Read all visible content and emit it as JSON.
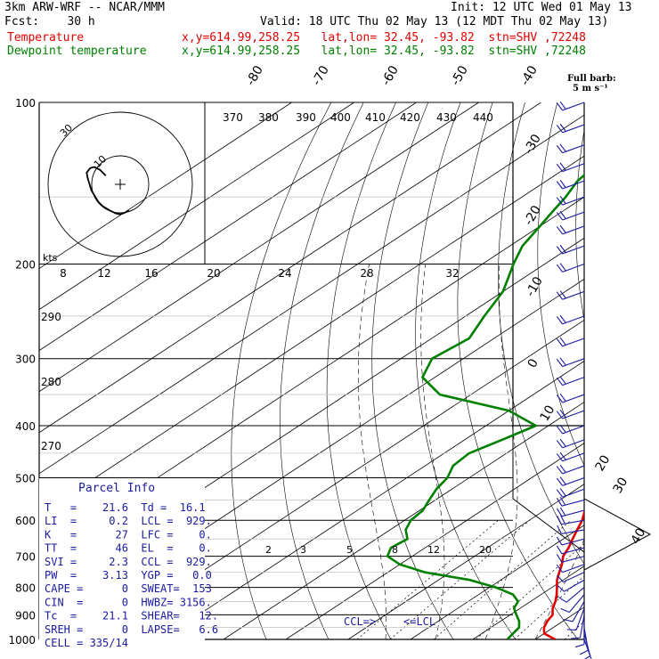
{
  "header": {
    "model": "3km ARW-WRF -- NCAR/MMM",
    "init": "Init: 12 UTC Wed 01 May 13",
    "fcst": "Fcst:    30 h",
    "valid": "Valid: 18 UTC Thu 02 May 13 (12 MDT Thu 02 May 13)",
    "temp_label": "Temperature",
    "temp_info": "x,y=614.99,258.25   lat,lon= 32.45, -93.82  stn=SHV ,72248",
    "dew_label": "Dewpoint temperature",
    "dew_info": "x,y=614.99,258.25   lat,lon= 32.45, -93.82  stn=SHV ,72248"
  },
  "barb_legend": {
    "title": "Full barb:",
    "unit": "5 m s⁻¹"
  },
  "parcel_info": {
    "title": "Parcel Info",
    "rows": [
      "T   =    21.6  Td =  16.1",
      "LI  =     0.2  LCL =  929.",
      "K   =      27  LFC =    0.",
      "TT  =      46  EL  =    0.",
      "SVI =     2.3  CCL =  929.",
      "PW  =    3.13  YGP =   0.0",
      "CAPE =      0  SWEAT=  153",
      "CIN  =      0  HWBZ= 3156.",
      "Tc  =    21.1  SHEAR=   12.",
      "SREH =      0  LAPSE=   6.6",
      "CELL = 335/14"
    ]
  },
  "hodograph": {
    "unit_label": "kts",
    "ring_labels": [
      "30",
      "10"
    ],
    "speed_ticks": [
      "8",
      "12",
      "16",
      "20",
      "24",
      "28",
      "32"
    ]
  },
  "theta_labels": [
    "370",
    "380",
    "390",
    "400",
    "410",
    "420",
    "430",
    "440"
  ],
  "theta_left_labels": [
    "290",
    "280",
    "270"
  ],
  "mixing_ratio_labels": [
    "2",
    "3",
    "5",
    "8",
    "12",
    "20"
  ],
  "level_labels": {
    "ccl": "CCL=>",
    "lcl": "<=LCL"
  },
  "colors": {
    "temperature": "#e00000",
    "dewpoint": "#008000",
    "parcel_text": "#1a1aa0",
    "barbs": "#1a1aa0"
  },
  "chart_data": {
    "type": "line",
    "subtype": "skew-T log-P sounding",
    "y_axis": {
      "label": "Pressure (hPa)",
      "scale": "log",
      "ticks": [
        100,
        200,
        300,
        400,
        500,
        600,
        700,
        800,
        900,
        1000
      ],
      "range": [
        1000,
        100
      ]
    },
    "isotherm_labels": [
      "-80",
      "-70",
      "-60",
      "-50",
      "-40",
      "-30",
      "-20",
      "-10",
      "0",
      "10",
      "20",
      "30",
      "40"
    ],
    "series": [
      {
        "name": "Temperature",
        "pressure": [
          1000,
          975,
          950,
          925,
          900,
          875,
          850,
          825,
          800,
          775,
          750,
          725,
          700,
          675,
          650,
          625,
          600,
          575,
          550,
          525,
          500,
          475,
          450,
          425,
          400,
          375,
          350,
          325,
          300,
          275,
          250,
          225,
          200,
          185,
          170,
          160,
          150,
          140,
          130,
          120,
          110,
          100
        ],
        "temperature_c": [
          23.2,
          20.0,
          18.5,
          17.5,
          16.8,
          15.2,
          14.0,
          12.5,
          10.8,
          9.0,
          7.5,
          6.0,
          4.2,
          3.0,
          1.5,
          0.0,
          -1.5,
          -3.5,
          -5.5,
          -8.0,
          -10.5,
          -13.0,
          -16.0,
          -19.0,
          -22.5,
          -26.0,
          -30.0,
          -34.0,
          -38.5,
          -43.5,
          -48.5,
          -54.0,
          -60.0,
          -63.5,
          -66.0,
          -66.8,
          -66.0,
          -65.0,
          -64.0,
          -63.0,
          -62.0,
          -61.5
        ]
      },
      {
        "name": "Dewpoint temperature",
        "pressure": [
          1000,
          975,
          950,
          925,
          900,
          875,
          850,
          825,
          800,
          775,
          750,
          725,
          700,
          675,
          650,
          625,
          600,
          575,
          550,
          525,
          500,
          475,
          450,
          425,
          400,
          375,
          350,
          325,
          300,
          275,
          250,
          225,
          200,
          185,
          170,
          160,
          150,
          140,
          130,
          120,
          110,
          100
        ],
        "dewpoint_c": [
          15.5,
          15.0,
          14.5,
          13.0,
          11.0,
          9.0,
          8.0,
          5.5,
          1.0,
          -5.0,
          -14.0,
          -20.0,
          -24.0,
          -25.5,
          -25.0,
          -27.5,
          -29.0,
          -29.5,
          -31.0,
          -32.5,
          -33.5,
          -35.5,
          -36.0,
          -34.0,
          -32.0,
          -40.0,
          -55.0,
          -62.0,
          -65.0,
          -64.0,
          -67.0,
          -70.0,
          -75.0,
          -78.0,
          -80.0,
          -81.5,
          -83.0,
          -85.0,
          -86.0,
          -87.0,
          -88.0,
          -89.0
        ]
      }
    ],
    "wind_barbs": {
      "pressure": [
        1000,
        975,
        950,
        925,
        900,
        875,
        850,
        825,
        800,
        775,
        750,
        725,
        700,
        675,
        650,
        625,
        600,
        575,
        550,
        525,
        500,
        475,
        450,
        425,
        400,
        375,
        350,
        325,
        300,
        275,
        250,
        225,
        200,
        185,
        170,
        160,
        150,
        140,
        130,
        120,
        110,
        100
      ],
      "direction_deg": [
        160,
        165,
        170,
        180,
        190,
        200,
        210,
        220,
        230,
        240,
        245,
        250,
        255,
        255,
        255,
        260,
        260,
        255,
        255,
        250,
        250,
        250,
        250,
        250,
        250,
        250,
        250,
        250,
        250,
        250,
        250,
        250,
        250,
        250,
        250,
        250,
        250,
        250,
        250,
        250,
        250,
        250
      ],
      "speed_ms": [
        5,
        5,
        5,
        5,
        5,
        5,
        5,
        5,
        5,
        5,
        5,
        5,
        5,
        5,
        5,
        5,
        10,
        10,
        10,
        10,
        10,
        10,
        10,
        10,
        10,
        10,
        10,
        10,
        10,
        10,
        10,
        10,
        10,
        10,
        10,
        10,
        10,
        10,
        10,
        10,
        10,
        10
      ]
    },
    "hodograph_u_ms": [
      1.5,
      1.0,
      0.5,
      0.0,
      -0.8,
      -1.8,
      -3.0,
      -3.8,
      -4.4,
      -5.0,
      -5.3,
      -5.6,
      -5.8,
      -5.2,
      -4.5,
      -3.5,
      -2.5
    ],
    "hodograph_v_ms": [
      -4.5,
      -4.8,
      -5.0,
      -5.2,
      -5.0,
      -4.5,
      -3.8,
      -3.0,
      -2.0,
      -1.0,
      0.0,
      1.0,
      2.0,
      2.8,
      3.0,
      2.5,
      1.5
    ]
  }
}
